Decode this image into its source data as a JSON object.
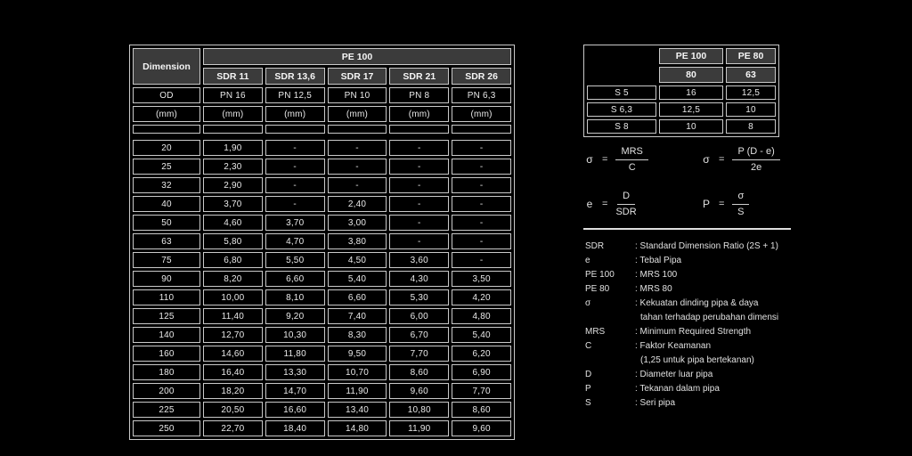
{
  "main_table": {
    "corner_header": "Dimension",
    "group_header": "PE 100",
    "sdr_headers": [
      "SDR 11",
      "SDR 13,6",
      "SDR 17",
      "SDR 21",
      "SDR 26"
    ],
    "od_row": [
      "OD",
      "PN 16",
      "PN 12,5",
      "PN 10",
      "PN 8",
      "PN 6,3"
    ],
    "unit_row": [
      "(mm)",
      "(mm)",
      "(mm)",
      "(mm)",
      "(mm)",
      "(mm)"
    ],
    "rows": [
      [
        "20",
        "1,90",
        "-",
        "-",
        "-",
        "-"
      ],
      [
        "25",
        "2,30",
        "-",
        "-",
        "-",
        "-"
      ],
      [
        "32",
        "2,90",
        "-",
        "-",
        "-",
        "-"
      ],
      [
        "40",
        "3,70",
        "-",
        "2,40",
        "-",
        "-"
      ],
      [
        "50",
        "4,60",
        "3,70",
        "3,00",
        "-",
        "-"
      ],
      [
        "63",
        "5,80",
        "4,70",
        "3,80",
        "-",
        "-"
      ],
      [
        "75",
        "6,80",
        "5,50",
        "4,50",
        "3,60",
        "-"
      ],
      [
        "90",
        "8,20",
        "6,60",
        "5,40",
        "4,30",
        "3,50"
      ],
      [
        "110",
        "10,00",
        "8,10",
        "6,60",
        "5,30",
        "4,20"
      ],
      [
        "125",
        "11,40",
        "9,20",
        "7,40",
        "6,00",
        "4,80"
      ],
      [
        "140",
        "12,70",
        "10,30",
        "8,30",
        "6,70",
        "5,40"
      ],
      [
        "160",
        "14,60",
        "11,80",
        "9,50",
        "7,70",
        "6,20"
      ],
      [
        "180",
        "16,40",
        "13,30",
        "10,70",
        "8,60",
        "6,90"
      ],
      [
        "200",
        "18,20",
        "14,70",
        "11,90",
        "9,60",
        "7,70"
      ],
      [
        "225",
        "20,50",
        "16,60",
        "13,40",
        "10,80",
        "8,60"
      ],
      [
        "250",
        "22,70",
        "18,40",
        "14,80",
        "11,90",
        "9,60"
      ]
    ]
  },
  "pn_table": {
    "col_headers": [
      "PE 100",
      "PE 80"
    ],
    "sub_headers": [
      "80",
      "63"
    ],
    "rows": [
      [
        "S 5",
        "16",
        "12,5"
      ],
      [
        "S 6,3",
        "12,5",
        "10"
      ],
      [
        "S 8",
        "10",
        "8"
      ]
    ]
  },
  "symbols": {
    "equals": "="
  },
  "formulas": [
    {
      "lhs": "σ",
      "num": "MRS",
      "den": "C"
    },
    {
      "lhs": "σ",
      "num": "P (D - e)",
      "den": "2e"
    },
    {
      "lhs": "e",
      "num": "D",
      "den": "SDR"
    },
    {
      "lhs": "P",
      "num": "σ",
      "den": "S"
    }
  ],
  "legend": [
    {
      "symbol": "SDR",
      "text": ": Standard Dimension Ratio (2S + 1)"
    },
    {
      "symbol": "e",
      "text": ": Tebal Pipa"
    },
    {
      "symbol": "PE 100",
      "text": ": MRS 100"
    },
    {
      "symbol": "PE 80",
      "text": ": MRS 80"
    },
    {
      "symbol": "σ",
      "text": ": Kekuatan dinding pipa & daya",
      "text2": "tahan terhadap perubahan dimensi"
    },
    {
      "symbol": "MRS",
      "text": ": Minimum Required Strength"
    },
    {
      "symbol": "C",
      "text": ": Faktor Keamanan",
      "text2": "(1,25 untuk pipa bertekanan)"
    },
    {
      "symbol": "D",
      "text": ": Diameter luar pipa"
    },
    {
      "symbol": "P",
      "text": ": Tekanan dalam pipa"
    },
    {
      "symbol": "S",
      "text": ": Seri pipa"
    }
  ],
  "colors": {
    "background": "#000000",
    "header_bg": "#3b3b3b",
    "border": "#c9c9c9",
    "text": "#e9e9e9"
  }
}
